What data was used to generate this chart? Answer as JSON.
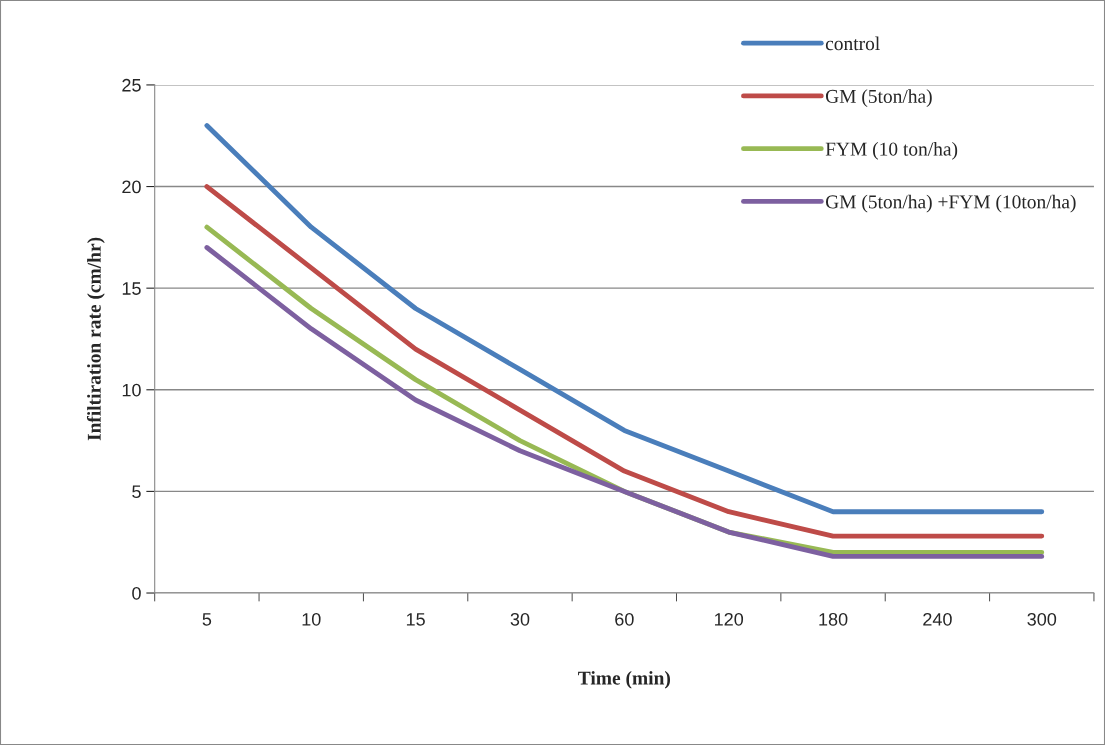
{
  "chart_data": {
    "type": "line",
    "xlabel": "Time (min)",
    "ylabel": "Infiltiration rate (cm/hr)",
    "categories": [
      "5",
      "10",
      "15",
      "30",
      "60",
      "120",
      "180",
      "240",
      "300"
    ],
    "series": [
      {
        "name": "control",
        "color": "#4a7ebb",
        "values": [
          23,
          18,
          14,
          11,
          8,
          6,
          4,
          4,
          4
        ]
      },
      {
        "name": "GM (5ton/ha)",
        "color": "#be4b48",
        "values": [
          20,
          16,
          12,
          9,
          6,
          4,
          2.8,
          2.8,
          2.8
        ]
      },
      {
        "name": "FYM (10 ton/ha)",
        "color": "#98b954",
        "values": [
          18,
          14,
          10.5,
          7.5,
          5,
          3,
          2,
          2,
          2
        ]
      },
      {
        "name": "GM (5ton/ha) +FYM (10ton/ha)",
        "color": "#7d60a0",
        "values": [
          17,
          13,
          9.5,
          7,
          5,
          3,
          1.8,
          1.8,
          1.8
        ]
      }
    ],
    "ylim": [
      0,
      25
    ],
    "yticks": [
      0,
      5,
      10,
      15,
      20,
      25
    ],
    "grid": "y",
    "legend": "top right",
    "marker": "none",
    "line_style": "solid"
  }
}
